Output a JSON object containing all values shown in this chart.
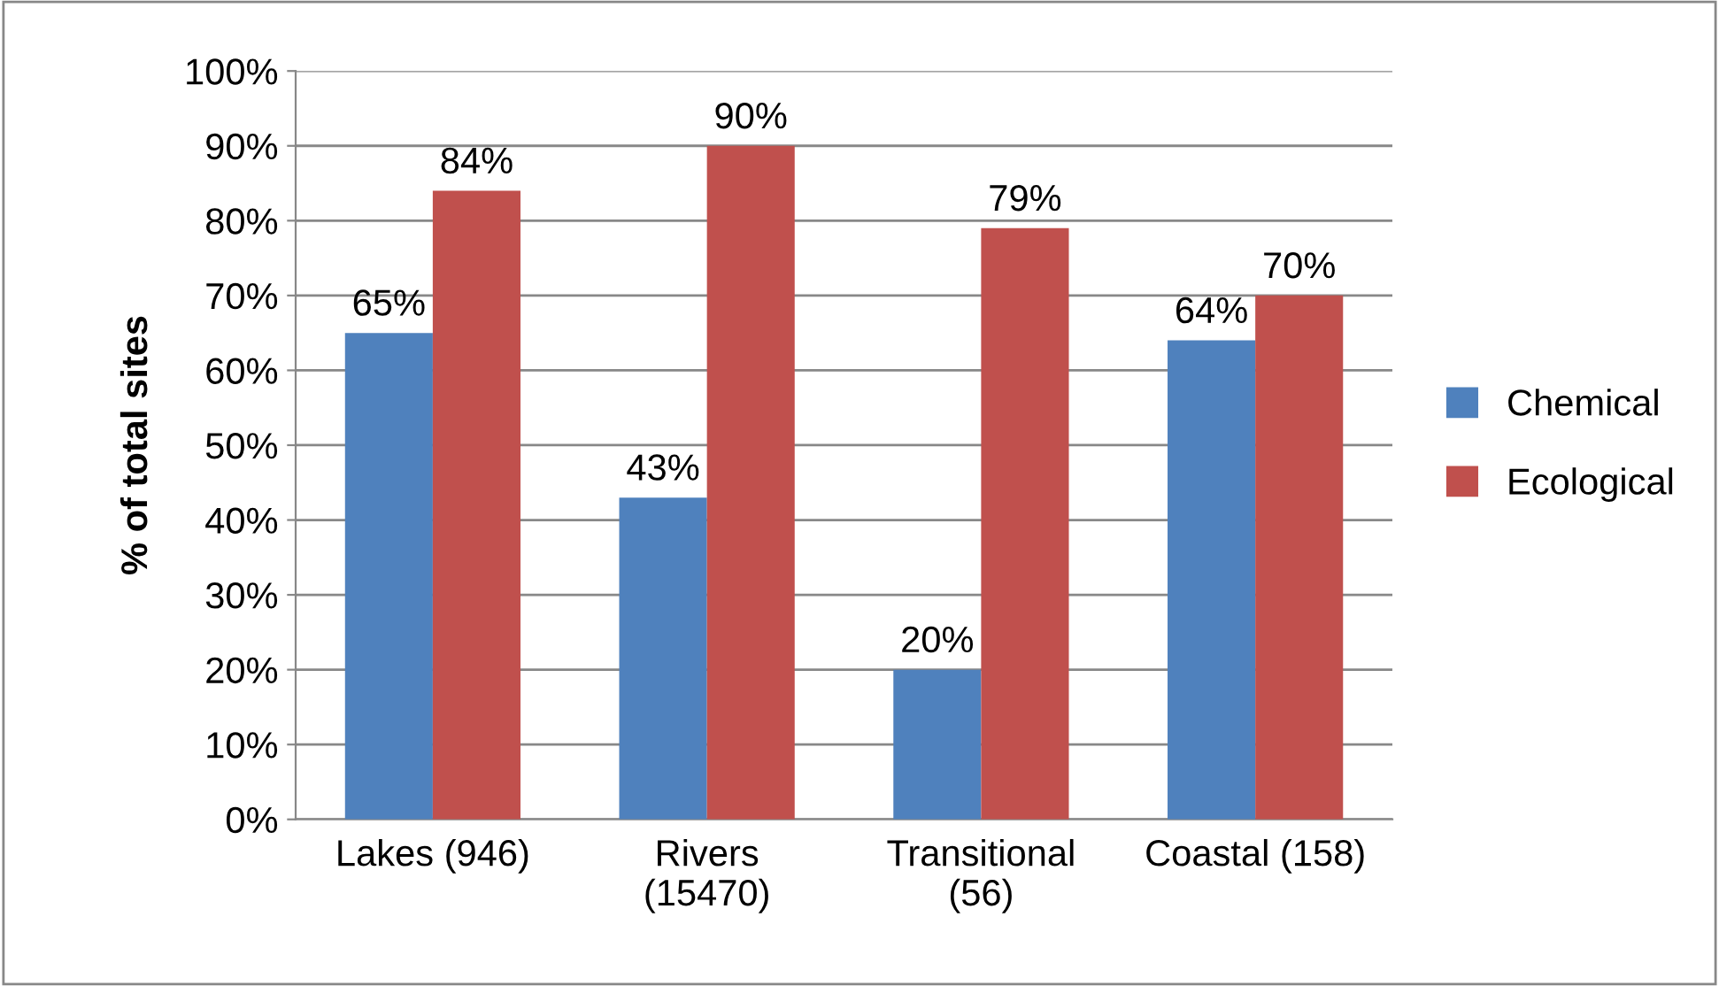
{
  "chart_data": {
    "type": "bar",
    "ylabel": "% of total sites",
    "categories": [
      "Lakes (946)",
      "Rivers\n(15470)",
      "Transitional\n(56)",
      "Coastal (158)"
    ],
    "series": [
      {
        "name": "Chemical",
        "color": "#4f81bd",
        "values": [
          65,
          43,
          20,
          64
        ],
        "value_labels": [
          "65%",
          "43%",
          "20%",
          "64%"
        ]
      },
      {
        "name": "Ecological",
        "color": "#c0504d",
        "values": [
          84,
          90,
          79,
          70
        ],
        "value_labels": [
          "84%",
          "90%",
          "79%",
          "70%"
        ]
      }
    ],
    "ylim": [
      0,
      100
    ],
    "yticks": [
      {
        "value": 0,
        "label": "0%"
      },
      {
        "value": 10,
        "label": "10%"
      },
      {
        "value": 20,
        "label": "20%"
      },
      {
        "value": 30,
        "label": "30%"
      },
      {
        "value": 40,
        "label": "40%"
      },
      {
        "value": 50,
        "label": "50%"
      },
      {
        "value": 60,
        "label": "60%"
      },
      {
        "value": 70,
        "label": "70%"
      },
      {
        "value": 80,
        "label": "80%"
      },
      {
        "value": 90,
        "label": "90%"
      },
      {
        "value": 100,
        "label": "100%"
      }
    ],
    "grid": "y",
    "legend": "right"
  }
}
